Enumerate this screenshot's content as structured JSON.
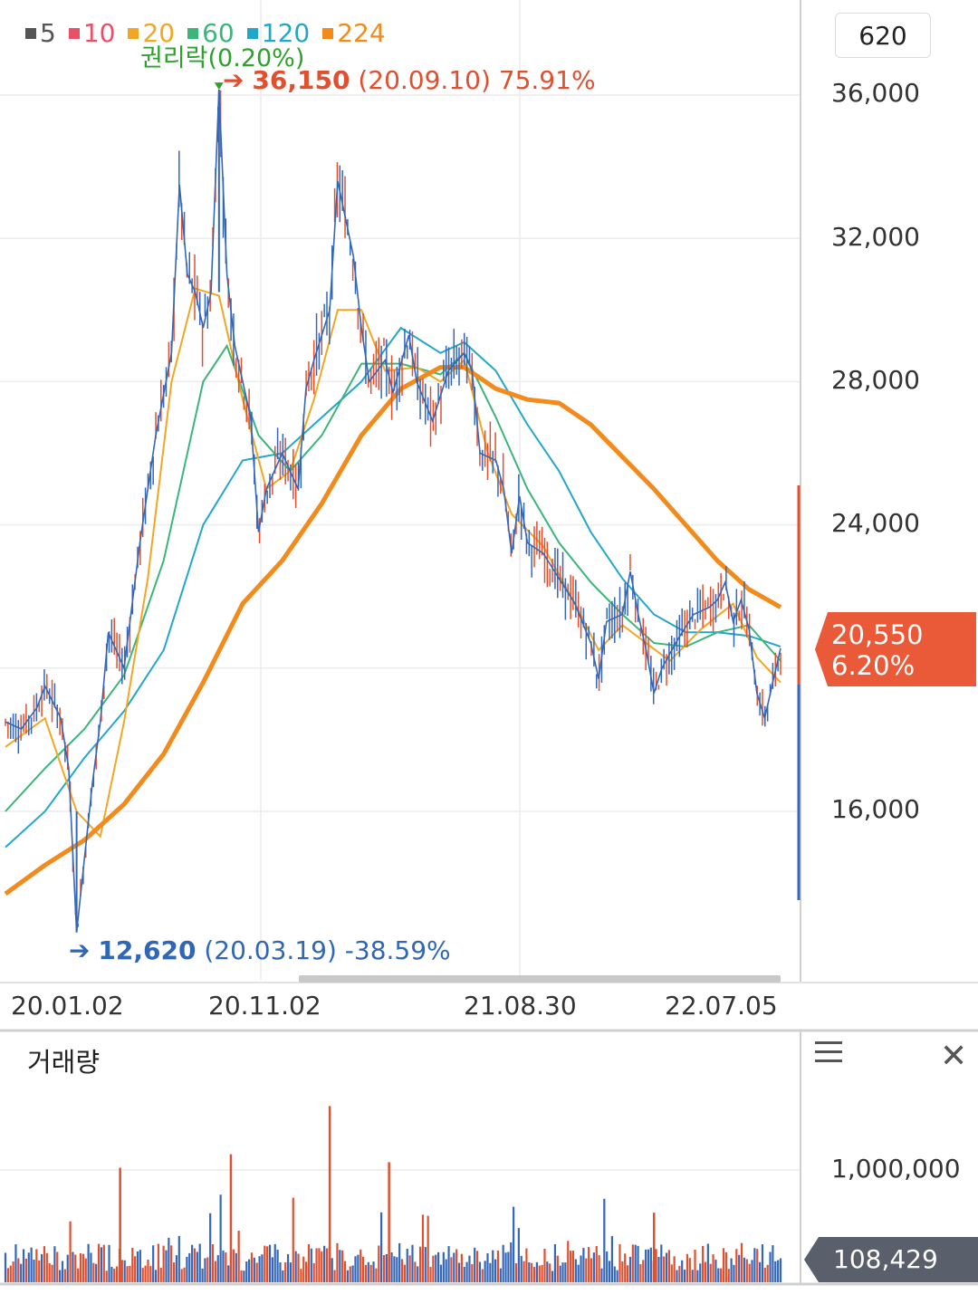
{
  "legend": [
    {
      "label": "5",
      "color": "#555555"
    },
    {
      "label": "10",
      "color": "#e8506a"
    },
    {
      "label": "20",
      "color": "#f2a623"
    },
    {
      "label": "60",
      "color": "#3bb57a"
    },
    {
      "label": "120",
      "color": "#22a7c9"
    },
    {
      "label": "224",
      "color": "#f28a1c"
    }
  ],
  "period": "620",
  "annotations": {
    "rights": "권리락(0.20%)",
    "high": {
      "price": "36,150",
      "detail": "(20.09.10) 75.91%",
      "color": "#e0502f"
    },
    "low": {
      "price": "12,620",
      "detail": "(20.03.19) -38.59%",
      "color": "#2f67b5"
    }
  },
  "y_ticks": [
    "36,000",
    "32,000",
    "28,000",
    "24,000",
    "16,000"
  ],
  "current": {
    "price": "20,550",
    "change": "6.20%",
    "color": "#ea5a38"
  },
  "x_ticks": [
    "20.01.02",
    "20.11.02",
    "21.08.30",
    "22.07.05"
  ],
  "volume": {
    "title": "거래량",
    "tick": "1,000,000",
    "current": "108,429",
    "menu_icon": "hamburger-menu-icon",
    "close_icon": "close-icon"
  },
  "chart_data": {
    "type": "line",
    "y_range": [
      11000,
      37500
    ],
    "price_points": [
      [
        0.0,
        18500
      ],
      [
        0.02,
        18300
      ],
      [
        0.04,
        18900
      ],
      [
        0.05,
        19500
      ],
      [
        0.07,
        18600
      ],
      [
        0.08,
        17200
      ],
      [
        0.09,
        12620
      ],
      [
        0.11,
        16800
      ],
      [
        0.12,
        18500
      ],
      [
        0.13,
        21000
      ],
      [
        0.14,
        20500
      ],
      [
        0.15,
        20000
      ],
      [
        0.17,
        23500
      ],
      [
        0.19,
        26500
      ],
      [
        0.21,
        28800
      ],
      [
        0.22,
        33500
      ],
      [
        0.23,
        31000
      ],
      [
        0.24,
        30500
      ],
      [
        0.25,
        29500
      ],
      [
        0.26,
        30500
      ],
      [
        0.27,
        36150
      ],
      [
        0.28,
        31000
      ],
      [
        0.29,
        29000
      ],
      [
        0.31,
        27000
      ],
      [
        0.32,
        23800
      ],
      [
        0.33,
        25000
      ],
      [
        0.35,
        26000
      ],
      [
        0.37,
        25000
      ],
      [
        0.38,
        27800
      ],
      [
        0.39,
        28600
      ],
      [
        0.41,
        30000
      ],
      [
        0.42,
        33600
      ],
      [
        0.44,
        31500
      ],
      [
        0.45,
        29500
      ],
      [
        0.46,
        28000
      ],
      [
        0.48,
        28600
      ],
      [
        0.49,
        27700
      ],
      [
        0.51,
        29300
      ],
      [
        0.52,
        28000
      ],
      [
        0.54,
        26900
      ],
      [
        0.56,
        28300
      ],
      [
        0.58,
        28800
      ],
      [
        0.59,
        28300
      ],
      [
        0.6,
        26000
      ],
      [
        0.62,
        25800
      ],
      [
        0.63,
        25000
      ],
      [
        0.64,
        23200
      ],
      [
        0.65,
        24800
      ],
      [
        0.66,
        23500
      ],
      [
        0.68,
        23200
      ],
      [
        0.7,
        22500
      ],
      [
        0.72,
        21800
      ],
      [
        0.74,
        20700
      ],
      [
        0.75,
        19700
      ],
      [
        0.76,
        21300
      ],
      [
        0.78,
        21500
      ],
      [
        0.79,
        22700
      ],
      [
        0.8,
        21500
      ],
      [
        0.81,
        20500
      ],
      [
        0.82,
        19300
      ],
      [
        0.83,
        20000
      ],
      [
        0.85,
        20800
      ],
      [
        0.87,
        21500
      ],
      [
        0.89,
        21700
      ],
      [
        0.9,
        21900
      ],
      [
        0.91,
        22400
      ],
      [
        0.92,
        21300
      ],
      [
        0.93,
        21900
      ],
      [
        0.94,
        21100
      ],
      [
        0.95,
        19300
      ],
      [
        0.96,
        18600
      ],
      [
        0.97,
        19600
      ],
      [
        0.98,
        20550
      ]
    ],
    "ma224": [
      [
        0.0,
        13700
      ],
      [
        0.05,
        14500
      ],
      [
        0.1,
        15200
      ],
      [
        0.15,
        16200
      ],
      [
        0.2,
        17600
      ],
      [
        0.25,
        19600
      ],
      [
        0.3,
        21800
      ],
      [
        0.35,
        23000
      ],
      [
        0.4,
        24600
      ],
      [
        0.45,
        26500
      ],
      [
        0.5,
        27800
      ],
      [
        0.55,
        28400
      ],
      [
        0.58,
        28400
      ],
      [
        0.62,
        27800
      ],
      [
        0.66,
        27500
      ],
      [
        0.7,
        27400
      ],
      [
        0.74,
        26800
      ],
      [
        0.78,
        25900
      ],
      [
        0.82,
        25000
      ],
      [
        0.86,
        24000
      ],
      [
        0.9,
        23000
      ],
      [
        0.94,
        22200
      ],
      [
        0.98,
        21700
      ]
    ],
    "ma120": [
      [
        0.0,
        15000
      ],
      [
        0.05,
        16000
      ],
      [
        0.1,
        17500
      ],
      [
        0.15,
        18800
      ],
      [
        0.2,
        20500
      ],
      [
        0.25,
        24000
      ],
      [
        0.3,
        25800
      ],
      [
        0.35,
        26000
      ],
      [
        0.4,
        27000
      ],
      [
        0.45,
        28000
      ],
      [
        0.5,
        29500
      ],
      [
        0.55,
        28800
      ],
      [
        0.58,
        29100
      ],
      [
        0.62,
        28300
      ],
      [
        0.66,
        26800
      ],
      [
        0.7,
        25500
      ],
      [
        0.74,
        23800
      ],
      [
        0.78,
        22500
      ],
      [
        0.82,
        21500
      ],
      [
        0.86,
        21000
      ],
      [
        0.9,
        21000
      ],
      [
        0.94,
        20900
      ],
      [
        0.98,
        20600
      ]
    ],
    "ma60": [
      [
        0.0,
        16000
      ],
      [
        0.05,
        17200
      ],
      [
        0.1,
        18300
      ],
      [
        0.15,
        19800
      ],
      [
        0.2,
        23000
      ],
      [
        0.25,
        28000
      ],
      [
        0.28,
        29000
      ],
      [
        0.32,
        26500
      ],
      [
        0.36,
        25500
      ],
      [
        0.4,
        26500
      ],
      [
        0.45,
        28500
      ],
      [
        0.5,
        28500
      ],
      [
        0.55,
        28200
      ],
      [
        0.58,
        28800
      ],
      [
        0.62,
        27000
      ],
      [
        0.66,
        25000
      ],
      [
        0.7,
        23500
      ],
      [
        0.74,
        22400
      ],
      [
        0.78,
        21500
      ],
      [
        0.82,
        20700
      ],
      [
        0.86,
        20600
      ],
      [
        0.9,
        21000
      ],
      [
        0.94,
        21200
      ],
      [
        0.98,
        20200
      ]
    ],
    "ma20": [
      [
        0.0,
        17800
      ],
      [
        0.05,
        18600
      ],
      [
        0.09,
        16000
      ],
      [
        0.12,
        15300
      ],
      [
        0.15,
        18500
      ],
      [
        0.18,
        22500
      ],
      [
        0.21,
        28000
      ],
      [
        0.24,
        30600
      ],
      [
        0.27,
        30400
      ],
      [
        0.3,
        27500
      ],
      [
        0.33,
        25000
      ],
      [
        0.36,
        25500
      ],
      [
        0.39,
        27500
      ],
      [
        0.42,
        30000
      ],
      [
        0.45,
        30000
      ],
      [
        0.48,
        28300
      ],
      [
        0.52,
        28400
      ],
      [
        0.55,
        28000
      ],
      [
        0.58,
        28600
      ],
      [
        0.61,
        26000
      ],
      [
        0.64,
        24300
      ],
      [
        0.68,
        23400
      ],
      [
        0.72,
        21800
      ],
      [
        0.75,
        20500
      ],
      [
        0.78,
        21200
      ],
      [
        0.81,
        20700
      ],
      [
        0.84,
        20200
      ],
      [
        0.88,
        21100
      ],
      [
        0.92,
        21800
      ],
      [
        0.95,
        20300
      ],
      [
        0.98,
        19600
      ]
    ],
    "volume_ref": 1000000,
    "volume_range": [
      0,
      1600000
    ]
  }
}
